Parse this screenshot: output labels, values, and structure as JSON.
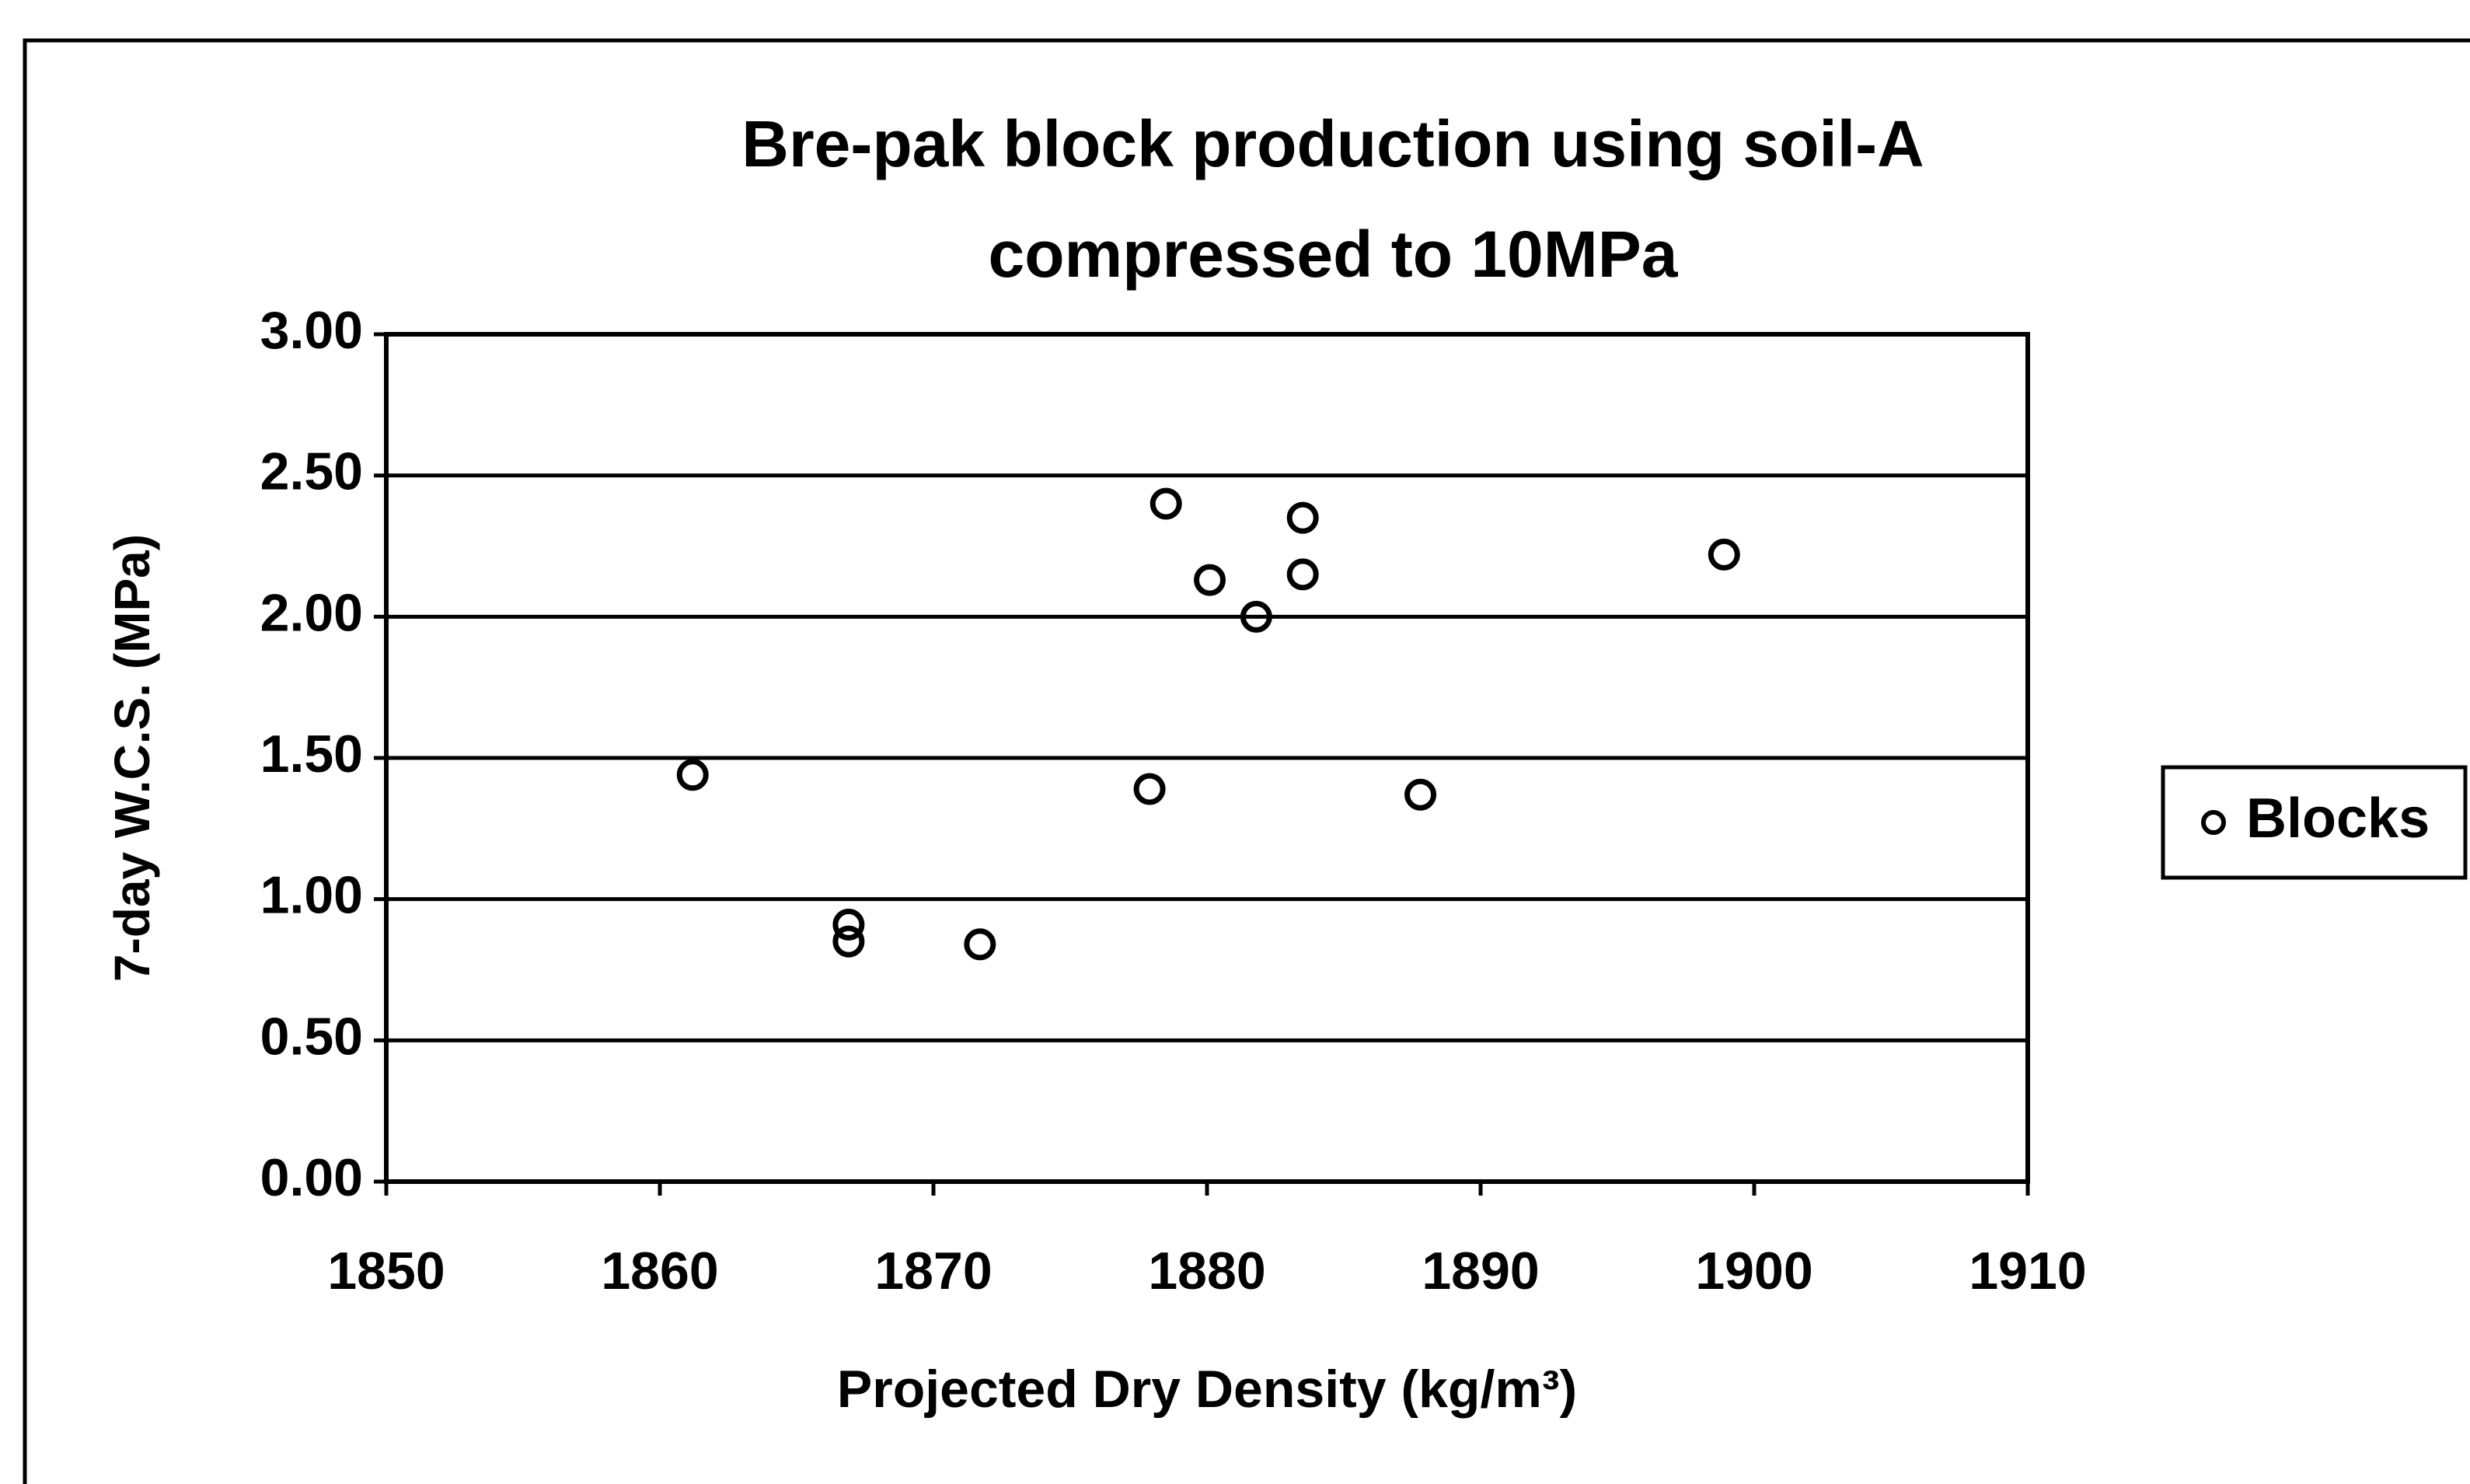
{
  "chart_data": {
    "type": "scatter",
    "title": [
      "Bre-pak block production using soil-A",
      "compressed to 10MPa"
    ],
    "xlabel": "Projected Dry Density (kg/m³)",
    "ylabel": "7-day W.C.S. (MPa)",
    "series": [
      {
        "name": "Blocks",
        "color": "#000000",
        "x": [
          1861.2,
          1866.9,
          1866.9,
          1871.7,
          1877.9,
          1878.5,
          1880.1,
          1881.8,
          1883.5,
          1883.5,
          1887.8,
          1898.9
        ],
        "values": [
          1.44,
          0.91,
          0.85,
          0.84,
          1.39,
          2.4,
          2.13,
          2.0,
          2.35,
          2.15,
          1.37,
          2.22
        ]
      }
    ],
    "xlim": [
      1850,
      1910
    ],
    "xticks": [
      1850,
      1860,
      1870,
      1880,
      1890,
      1900,
      1910
    ],
    "ylim": [
      0,
      3
    ],
    "yticks": [
      {
        "value": 0,
        "label": "0.00"
      },
      {
        "value": 0.5,
        "label": "0.50"
      },
      {
        "value": 1,
        "label": "1.00"
      },
      {
        "value": 1.5,
        "label": "1.50"
      },
      {
        "value": 2,
        "label": "2.00"
      },
      {
        "value": 2.5,
        "label": "2.50"
      },
      {
        "value": 3,
        "label": "3.00"
      }
    ],
    "grid": true,
    "legend": "right"
  }
}
